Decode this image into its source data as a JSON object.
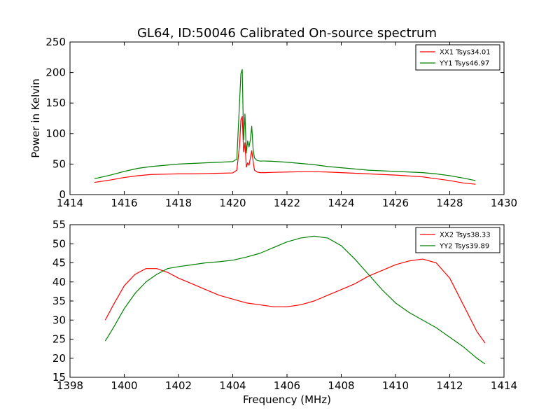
{
  "figure": {
    "title": "GL64, ID:50046 Calibrated On-source spectrum"
  },
  "chart_data": [
    {
      "type": "line",
      "title": "GL64, ID:50046 Calibrated On-source spectrum",
      "xlabel": "",
      "ylabel": "Power in Kelvin",
      "xlim": [
        1414,
        1430
      ],
      "ylim": [
        0,
        250
      ],
      "xticks": [
        1414,
        1416,
        1418,
        1420,
        1422,
        1424,
        1426,
        1428,
        1430
      ],
      "yticks": [
        0,
        50,
        100,
        150,
        200,
        250
      ],
      "grid": false,
      "legend_position": "top-right",
      "series": [
        {
          "name": "XX1 Tsys34.01",
          "color": "#ff0000",
          "x": [
            1414.9,
            1415.5,
            1416.0,
            1416.5,
            1417.0,
            1417.5,
            1418.0,
            1418.5,
            1419.0,
            1419.5,
            1420.0,
            1420.15,
            1420.25,
            1420.3,
            1420.35,
            1420.4,
            1420.45,
            1420.5,
            1420.55,
            1420.6,
            1420.65,
            1420.7,
            1420.75,
            1420.8,
            1420.9,
            1421.0,
            1421.2,
            1421.5,
            1422.0,
            1422.5,
            1423.0,
            1423.5,
            1424.0,
            1424.5,
            1425.0,
            1425.5,
            1426.0,
            1426.5,
            1427.0,
            1427.5,
            1428.0,
            1428.5,
            1428.95
          ],
          "y": [
            20,
            24,
            28,
            31,
            33,
            33.5,
            34,
            34,
            34.5,
            35,
            35.5,
            40,
            80,
            122,
            128,
            70,
            85,
            45,
            52,
            48,
            60,
            72,
            55,
            40,
            37,
            36,
            36,
            36.5,
            37,
            37.5,
            37.5,
            37,
            36,
            35,
            34,
            33,
            32,
            30.5,
            29,
            26,
            23,
            19,
            17
          ]
        },
        {
          "name": "YY1 Tsys46.97",
          "color": "#008000",
          "x": [
            1414.9,
            1415.5,
            1416.0,
            1416.5,
            1417.0,
            1417.5,
            1418.0,
            1418.5,
            1419.0,
            1419.5,
            1420.0,
            1420.15,
            1420.25,
            1420.3,
            1420.35,
            1420.4,
            1420.45,
            1420.5,
            1420.55,
            1420.6,
            1420.65,
            1420.7,
            1420.75,
            1420.8,
            1420.9,
            1421.0,
            1421.2,
            1421.5,
            1422.0,
            1422.5,
            1423.0,
            1423.5,
            1424.0,
            1424.5,
            1425.0,
            1425.5,
            1426.0,
            1426.5,
            1427.0,
            1427.5,
            1428.0,
            1428.5,
            1428.95
          ],
          "y": [
            26,
            32,
            38,
            43,
            46,
            48,
            50,
            51,
            52,
            53,
            54,
            58,
            150,
            198,
            205,
            90,
            132,
            68,
            88,
            78,
            90,
            112,
            75,
            60,
            56,
            55,
            55,
            54.5,
            53,
            51,
            49,
            46,
            44,
            42,
            40,
            39,
            38,
            37,
            36,
            34,
            31,
            27,
            23
          ]
        }
      ]
    },
    {
      "type": "line",
      "title": "",
      "xlabel": "Frequency (MHz)",
      "ylabel": "",
      "xlim": [
        1398,
        1414
      ],
      "ylim": [
        15,
        55
      ],
      "xticks": [
        1398,
        1400,
        1402,
        1404,
        1406,
        1408,
        1410,
        1412,
        1414
      ],
      "yticks": [
        15,
        20,
        25,
        30,
        35,
        40,
        45,
        50,
        55
      ],
      "grid": false,
      "legend_position": "top-right",
      "series": [
        {
          "name": "XX2 Tsys38.33",
          "color": "#ff0000",
          "x": [
            1399.3,
            1399.6,
            1400.0,
            1400.4,
            1400.8,
            1401.2,
            1401.6,
            1402.0,
            1402.5,
            1403.0,
            1403.5,
            1404.0,
            1404.5,
            1405.0,
            1405.5,
            1406.0,
            1406.5,
            1407.0,
            1407.5,
            1408.0,
            1408.5,
            1409.0,
            1409.5,
            1410.0,
            1410.5,
            1411.0,
            1411.5,
            1412.0,
            1412.5,
            1413.0,
            1413.3
          ],
          "y": [
            30,
            34,
            39,
            42,
            43.5,
            43.5,
            42.5,
            41,
            39.5,
            38,
            36.5,
            35.5,
            34.5,
            34,
            33.5,
            33.5,
            34,
            35,
            36.5,
            38,
            39.5,
            41.5,
            43,
            44.5,
            45.5,
            46,
            45,
            41,
            34,
            27,
            24
          ]
        },
        {
          "name": "YY2 Tsys39.89",
          "color": "#008000",
          "x": [
            1399.3,
            1399.6,
            1400.0,
            1400.4,
            1400.8,
            1401.2,
            1401.6,
            1402.0,
            1402.5,
            1403.0,
            1403.5,
            1404.0,
            1404.5,
            1405.0,
            1405.5,
            1406.0,
            1406.5,
            1407.0,
            1407.5,
            1408.0,
            1408.5,
            1409.0,
            1409.5,
            1410.0,
            1410.5,
            1411.0,
            1411.5,
            1412.0,
            1412.5,
            1413.0,
            1413.3
          ],
          "y": [
            24.5,
            28,
            33,
            37,
            40,
            42,
            43.5,
            44,
            44.5,
            45,
            45.3,
            45.7,
            46.5,
            47.5,
            49,
            50.5,
            51.5,
            52,
            51.5,
            49.5,
            46,
            42,
            38,
            34.5,
            32,
            30,
            28,
            25.5,
            23,
            20,
            18.5
          ]
        }
      ]
    }
  ]
}
